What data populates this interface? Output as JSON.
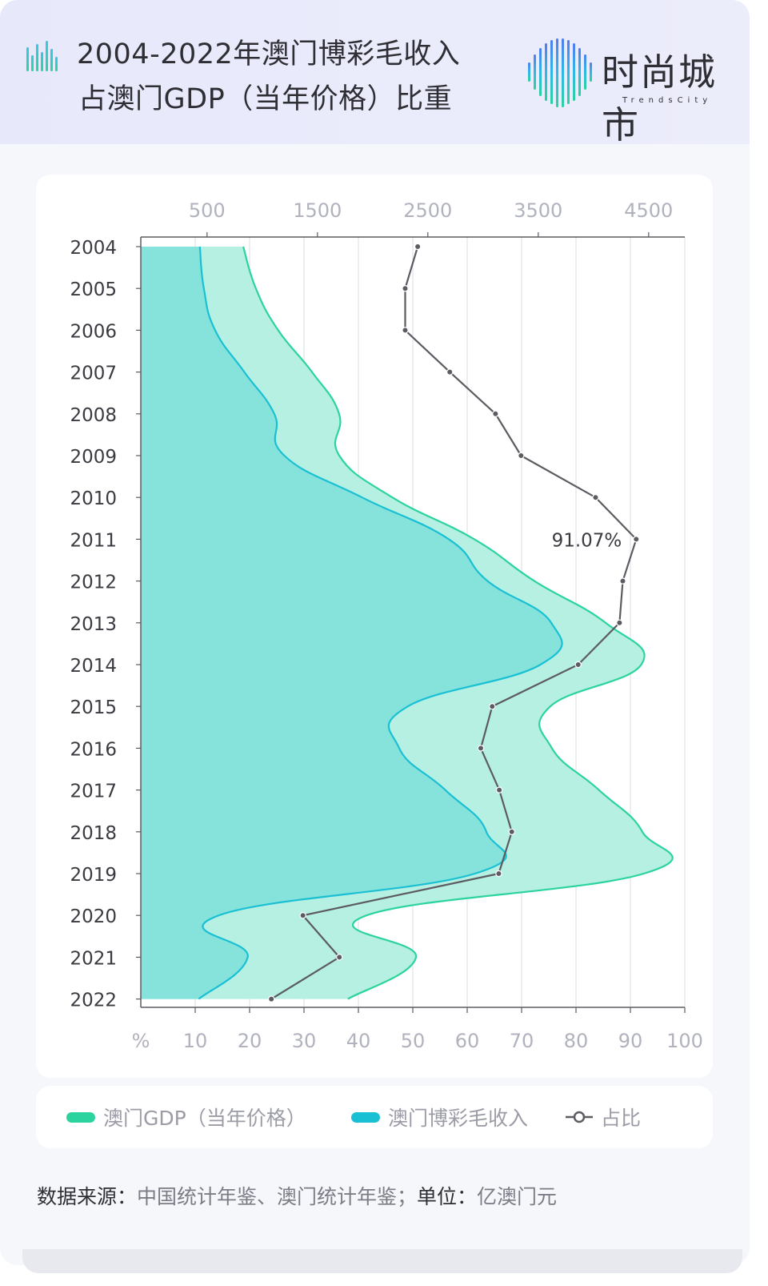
{
  "header": {
    "title_line1": "2004-2022年澳门博彩毛收入",
    "title_line2": "占澳门GDP（当年价格）比重",
    "logo_text": "时尚城市",
    "logo_sub": "TrendsCity"
  },
  "legend": {
    "gdp": "澳门GDP（当年价格）",
    "gaming": "澳门博彩毛收入",
    "ratio": "占比"
  },
  "source": {
    "label_source": "数据来源：",
    "source_text": "中国统计年鉴、澳门统计年鉴；",
    "label_unit": "单位：",
    "unit_text": "亿澳门元"
  },
  "colors": {
    "gdp_line": "#2bd39e",
    "gdp_fill": "#b6f0e2",
    "gaming_line": "#19c0d3",
    "gaming_fill": "#85e3dc",
    "ratio_line": "#5c5b62",
    "axis": "#5c5b62",
    "grid": "#dcdde2",
    "tick_text": "#b0b2bd"
  },
  "chart_data": {
    "type": "area",
    "orientation": "horizontal",
    "categories": [
      "2004",
      "2005",
      "2006",
      "2007",
      "2008",
      "2009",
      "2010",
      "2011",
      "2012",
      "2013",
      "2014",
      "2015",
      "2016",
      "2017",
      "2018",
      "2019",
      "2020",
      "2021",
      "2022"
    ],
    "top_axis": {
      "ticks": [
        500,
        1500,
        2500,
        3500,
        4500
      ]
    },
    "bottom_axis": {
      "unit_label": "%",
      "ticks": [
        10,
        20,
        30,
        40,
        50,
        60,
        70,
        80,
        90,
        100
      ],
      "range": [
        0,
        100
      ]
    },
    "series": [
      {
        "name": "澳门GDP（当年价格）",
        "axis": "top",
        "values": [
          828,
          942,
          1144,
          1451,
          1696,
          1698,
          2179,
          2921,
          3465,
          4110,
          4433,
          3609,
          3624,
          4050,
          4443,
          4455,
          1944,
          2393,
          1775
        ]
      },
      {
        "name": "澳门博彩毛收入",
        "axis": "top",
        "values": [
          435,
          471,
          573,
          838,
          1109,
          1200,
          1904,
          2690,
          3041,
          3618,
          3520,
          2318,
          2241,
          2658,
          3030,
          2925,
          606,
          868,
          425
        ]
      },
      {
        "name": "占比",
        "axis": "bottom",
        "values": [
          50.9,
          48.6,
          48.6,
          56.8,
          65.2,
          69.9,
          83.6,
          91.07,
          88.6,
          88.0,
          80.4,
          64.6,
          62.5,
          65.9,
          68.2,
          65.8,
          29.8,
          36.5,
          24.0
        ]
      }
    ],
    "annotations": [
      {
        "category": "2011",
        "series": "占比",
        "text": "91.07%"
      }
    ],
    "grid": true,
    "legend_position": "bottom"
  }
}
